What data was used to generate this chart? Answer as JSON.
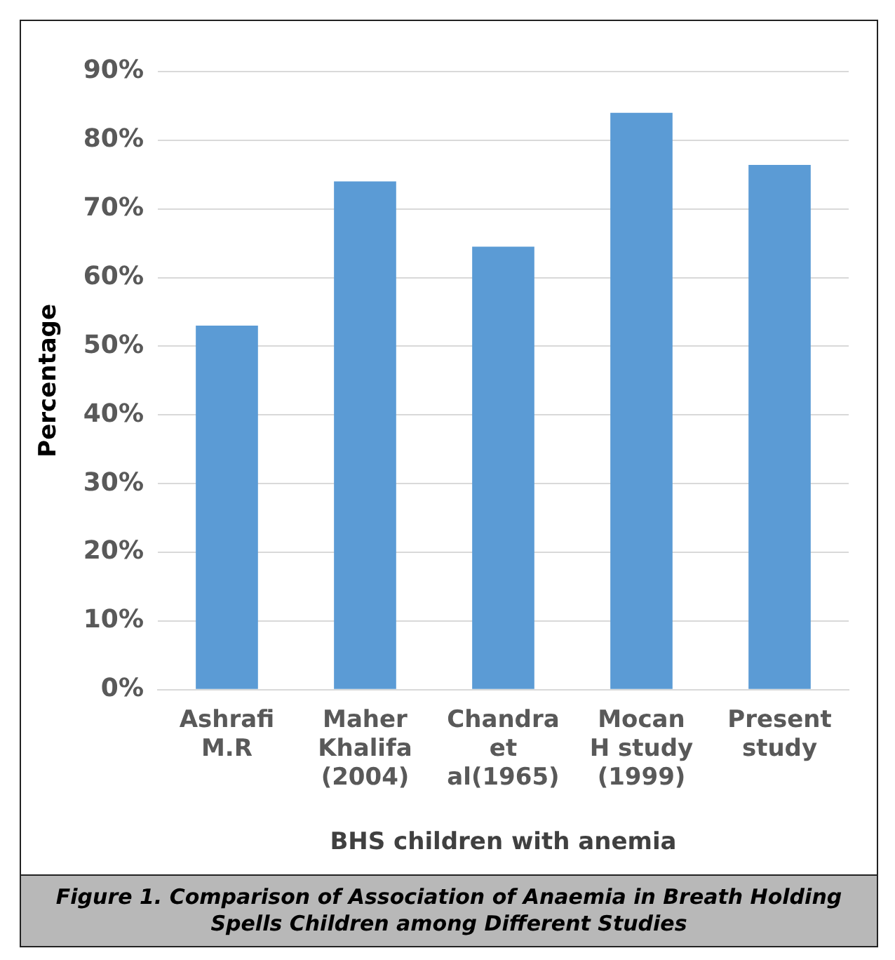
{
  "chart_data": {
    "type": "bar",
    "xlabel": "BHS children with anemia",
    "ylabel": "Percentage",
    "categories": [
      "Ashrafi M.R",
      "Maher Khalifa (2004)",
      "Chandra et al(1965)",
      "Mocan H study (1999)",
      "Present study"
    ],
    "values": [
      53,
      74,
      64.5,
      84,
      76.4
    ],
    "color": "#5b9bd5",
    "ylim": [
      0,
      90
    ],
    "yticks": [
      {
        "value": 0,
        "label": "0%"
      },
      {
        "value": 10,
        "label": "10%"
      },
      {
        "value": 20,
        "label": "20%"
      },
      {
        "value": 30,
        "label": "30%"
      },
      {
        "value": 40,
        "label": "40%"
      },
      {
        "value": 50,
        "label": "50%"
      },
      {
        "value": 60,
        "label": "60%"
      },
      {
        "value": 70,
        "label": "70%"
      },
      {
        "value": 80,
        "label": "80%"
      },
      {
        "value": 90,
        "label": "90%"
      }
    ],
    "grid": "y",
    "legend": false,
    "annotations": [
      "Figure 1. Comparison of Association of Anaemia in Breath Holding Spells Children among Different Studies"
    ]
  }
}
